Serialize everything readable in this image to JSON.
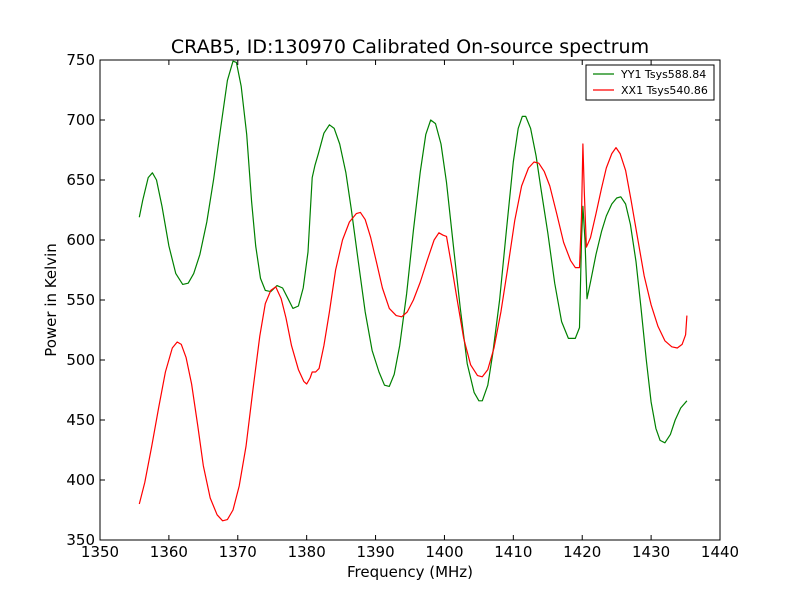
{
  "chart_data": {
    "type": "line",
    "title": "CRAB5, ID:130970 Calibrated On-source spectrum",
    "xlabel": "Frequency (MHz)",
    "ylabel": "Power in Kelvin",
    "xlim": [
      1350,
      1440
    ],
    "ylim": [
      350,
      750
    ],
    "xticks": [
      1350,
      1360,
      1370,
      1380,
      1390,
      1400,
      1410,
      1420,
      1430,
      1440
    ],
    "yticks": [
      350,
      400,
      450,
      500,
      550,
      600,
      650,
      700,
      750
    ],
    "grid": false,
    "legend_position": "upper-right",
    "series": [
      {
        "name": "YY1 Tsys588.84",
        "color": "#008000",
        "points": [
          [
            1355.7,
            619
          ],
          [
            1356.2,
            633
          ],
          [
            1357.0,
            652
          ],
          [
            1357.6,
            656
          ],
          [
            1358.2,
            650
          ],
          [
            1359.0,
            628
          ],
          [
            1360.0,
            595
          ],
          [
            1361.0,
            572
          ],
          [
            1362.0,
            563
          ],
          [
            1362.8,
            564
          ],
          [
            1363.6,
            572
          ],
          [
            1364.5,
            588
          ],
          [
            1365.5,
            615
          ],
          [
            1366.5,
            651
          ],
          [
            1367.5,
            693
          ],
          [
            1368.5,
            733
          ],
          [
            1369.3,
            749
          ],
          [
            1369.8,
            748
          ],
          [
            1370.5,
            728
          ],
          [
            1371.3,
            688
          ],
          [
            1372.0,
            632
          ],
          [
            1372.6,
            595
          ],
          [
            1373.3,
            568
          ],
          [
            1374.0,
            558
          ],
          [
            1374.8,
            557
          ],
          [
            1375.7,
            562
          ],
          [
            1376.5,
            560
          ],
          [
            1377.3,
            551
          ],
          [
            1378.0,
            543
          ],
          [
            1378.8,
            545
          ],
          [
            1379.5,
            560
          ],
          [
            1380.2,
            590
          ],
          [
            1380.8,
            652
          ],
          [
            1381.2,
            662
          ],
          [
            1381.7,
            672
          ],
          [
            1382.5,
            689
          ],
          [
            1383.3,
            696
          ],
          [
            1384.0,
            693
          ],
          [
            1384.8,
            680
          ],
          [
            1385.7,
            656
          ],
          [
            1386.5,
            625
          ],
          [
            1387.5,
            582
          ],
          [
            1388.5,
            540
          ],
          [
            1389.5,
            508
          ],
          [
            1390.5,
            490
          ],
          [
            1391.3,
            479
          ],
          [
            1392.0,
            478
          ],
          [
            1392.7,
            488
          ],
          [
            1393.5,
            512
          ],
          [
            1394.5,
            555
          ],
          [
            1395.5,
            608
          ],
          [
            1396.5,
            657
          ],
          [
            1397.3,
            688
          ],
          [
            1398.0,
            700
          ],
          [
            1398.7,
            697
          ],
          [
            1399.5,
            680
          ],
          [
            1400.3,
            648
          ],
          [
            1401.3,
            595
          ],
          [
            1402.3,
            543
          ],
          [
            1403.3,
            497
          ],
          [
            1404.3,
            473
          ],
          [
            1405.0,
            466
          ],
          [
            1405.5,
            466
          ],
          [
            1406.3,
            479
          ],
          [
            1407.0,
            505
          ],
          [
            1408.0,
            550
          ],
          [
            1409.0,
            608
          ],
          [
            1410.0,
            665
          ],
          [
            1410.7,
            693
          ],
          [
            1411.3,
            703
          ],
          [
            1411.8,
            703
          ],
          [
            1412.5,
            693
          ],
          [
            1413.3,
            670
          ],
          [
            1414.0,
            643
          ],
          [
            1415.0,
            606
          ],
          [
            1416.0,
            564
          ],
          [
            1417.0,
            532
          ],
          [
            1418.0,
            518
          ],
          [
            1419.0,
            518
          ],
          [
            1419.6,
            527
          ],
          [
            1419.9,
            600
          ],
          [
            1420.1,
            628
          ],
          [
            1420.4,
            600
          ],
          [
            1420.7,
            551
          ],
          [
            1421.2,
            565
          ],
          [
            1422.0,
            588
          ],
          [
            1422.8,
            607
          ],
          [
            1423.5,
            620
          ],
          [
            1424.3,
            630
          ],
          [
            1425.0,
            635
          ],
          [
            1425.6,
            636
          ],
          [
            1426.3,
            630
          ],
          [
            1427.0,
            613
          ],
          [
            1427.8,
            582
          ],
          [
            1428.5,
            545
          ],
          [
            1429.3,
            500
          ],
          [
            1430.0,
            465
          ],
          [
            1430.7,
            443
          ],
          [
            1431.3,
            433
          ],
          [
            1432.0,
            431
          ],
          [
            1432.8,
            438
          ],
          [
            1433.5,
            450
          ],
          [
            1434.3,
            460
          ],
          [
            1435.2,
            466
          ]
        ]
      },
      {
        "name": "XX1 Tsys540.86",
        "color": "#ff0000",
        "points": [
          [
            1355.7,
            380
          ],
          [
            1356.5,
            398
          ],
          [
            1357.5,
            428
          ],
          [
            1358.5,
            460
          ],
          [
            1359.5,
            490
          ],
          [
            1360.5,
            510
          ],
          [
            1361.2,
            515
          ],
          [
            1361.8,
            513
          ],
          [
            1362.5,
            502
          ],
          [
            1363.3,
            480
          ],
          [
            1364.2,
            445
          ],
          [
            1365.0,
            412
          ],
          [
            1366.0,
            385
          ],
          [
            1367.0,
            371
          ],
          [
            1367.8,
            366
          ],
          [
            1368.5,
            367
          ],
          [
            1369.3,
            375
          ],
          [
            1370.2,
            395
          ],
          [
            1371.2,
            428
          ],
          [
            1372.2,
            475
          ],
          [
            1373.2,
            520
          ],
          [
            1374.0,
            547
          ],
          [
            1374.8,
            558
          ],
          [
            1375.5,
            561
          ],
          [
            1376.3,
            551
          ],
          [
            1377.0,
            535
          ],
          [
            1377.8,
            512
          ],
          [
            1378.8,
            492
          ],
          [
            1379.6,
            482
          ],
          [
            1380.0,
            480
          ],
          [
            1380.5,
            485
          ],
          [
            1380.8,
            490
          ],
          [
            1381.3,
            490
          ],
          [
            1381.8,
            493
          ],
          [
            1382.5,
            512
          ],
          [
            1383.3,
            540
          ],
          [
            1384.2,
            575
          ],
          [
            1385.2,
            600
          ],
          [
            1386.2,
            615
          ],
          [
            1387.2,
            622
          ],
          [
            1387.8,
            623
          ],
          [
            1388.5,
            617
          ],
          [
            1389.3,
            602
          ],
          [
            1390.2,
            580
          ],
          [
            1391.0,
            560
          ],
          [
            1392.0,
            543
          ],
          [
            1393.0,
            537
          ],
          [
            1393.8,
            536
          ],
          [
            1394.6,
            540
          ],
          [
            1395.5,
            550
          ],
          [
            1396.5,
            565
          ],
          [
            1397.5,
            583
          ],
          [
            1398.5,
            600
          ],
          [
            1399.2,
            606
          ],
          [
            1399.8,
            604
          ],
          [
            1400.3,
            603
          ],
          [
            1401.0,
            580
          ],
          [
            1401.8,
            552
          ],
          [
            1402.8,
            518
          ],
          [
            1403.8,
            496
          ],
          [
            1404.8,
            487
          ],
          [
            1405.5,
            486
          ],
          [
            1406.3,
            492
          ],
          [
            1407.2,
            510
          ],
          [
            1408.2,
            540
          ],
          [
            1409.2,
            577
          ],
          [
            1410.2,
            616
          ],
          [
            1411.2,
            645
          ],
          [
            1412.2,
            660
          ],
          [
            1413.0,
            665
          ],
          [
            1413.7,
            664
          ],
          [
            1414.5,
            657
          ],
          [
            1415.3,
            645
          ],
          [
            1416.3,
            622
          ],
          [
            1417.3,
            598
          ],
          [
            1418.3,
            583
          ],
          [
            1419.0,
            577
          ],
          [
            1419.6,
            577
          ],
          [
            1419.9,
            620
          ],
          [
            1420.1,
            680
          ],
          [
            1420.3,
            640
          ],
          [
            1420.6,
            594
          ],
          [
            1421.2,
            602
          ],
          [
            1422.0,
            622
          ],
          [
            1422.8,
            643
          ],
          [
            1423.5,
            660
          ],
          [
            1424.3,
            672
          ],
          [
            1424.9,
            677
          ],
          [
            1425.5,
            672
          ],
          [
            1426.3,
            658
          ],
          [
            1427.1,
            633
          ],
          [
            1428.0,
            603
          ],
          [
            1429.0,
            570
          ],
          [
            1430.0,
            546
          ],
          [
            1431.0,
            528
          ],
          [
            1432.0,
            516
          ],
          [
            1433.0,
            511
          ],
          [
            1433.8,
            510
          ],
          [
            1434.5,
            513
          ],
          [
            1435.0,
            521
          ],
          [
            1435.2,
            537
          ]
        ]
      }
    ]
  }
}
